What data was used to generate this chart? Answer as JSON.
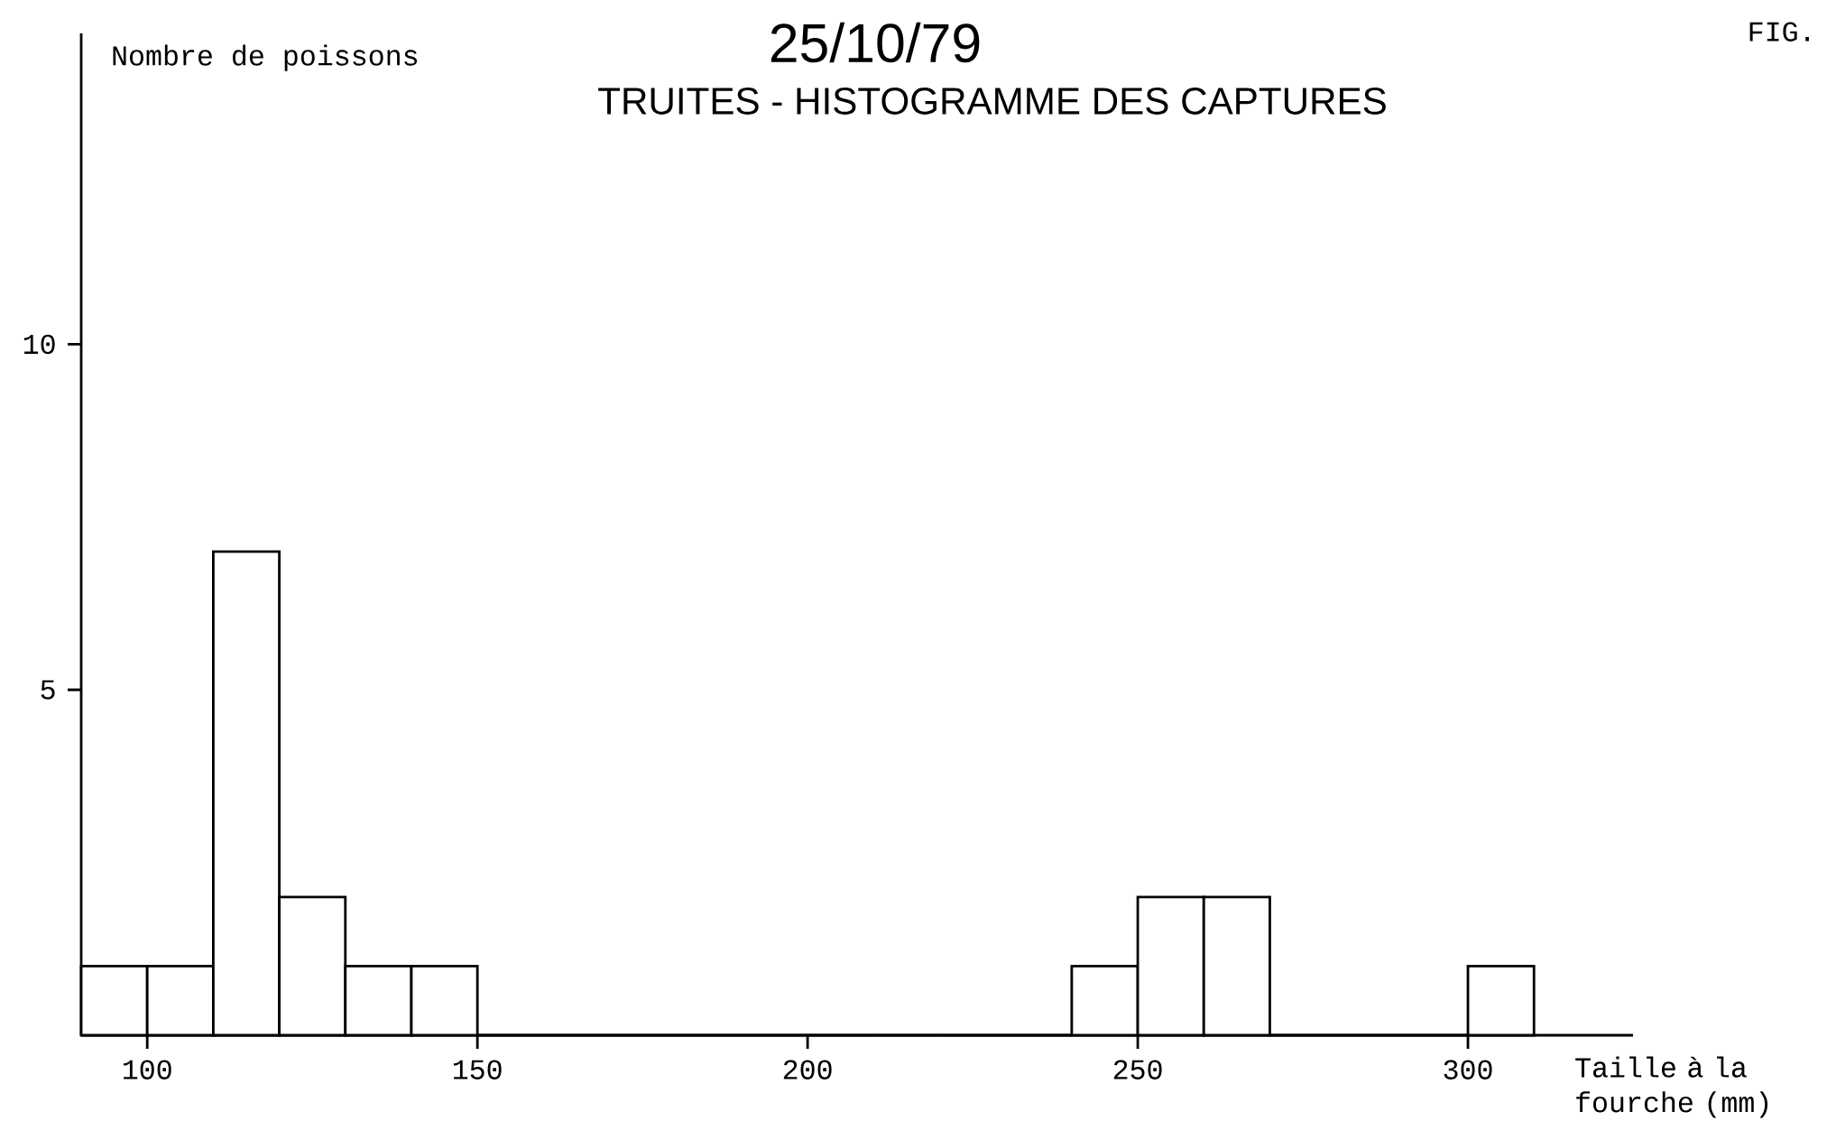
{
  "chart_data": {
    "type": "histogram",
    "title": "25/10/79",
    "subtitle": "TRUITES - HISTOGRAMME DES CAPTURES",
    "xlabel": "Taille à la fourche (mm)",
    "ylabel": "Nombre de poissons",
    "annotations": [
      "FIG."
    ],
    "bins": [
      90,
      100,
      110,
      120,
      130,
      140,
      150,
      160,
      170,
      180,
      190,
      200,
      210,
      220,
      230,
      240,
      250,
      260,
      270,
      280,
      290,
      300,
      310
    ],
    "values": [
      1,
      1,
      7,
      2,
      1,
      1,
      0,
      0,
      0,
      0,
      0,
      0,
      0,
      0,
      0,
      1,
      2,
      2,
      0,
      0,
      0,
      1
    ],
    "color": "#000000",
    "xlim": [
      90,
      325
    ],
    "ylim": [
      0,
      14.5
    ],
    "xticks": [
      100,
      150,
      200,
      250,
      300
    ],
    "yticks": [
      5,
      10
    ]
  }
}
